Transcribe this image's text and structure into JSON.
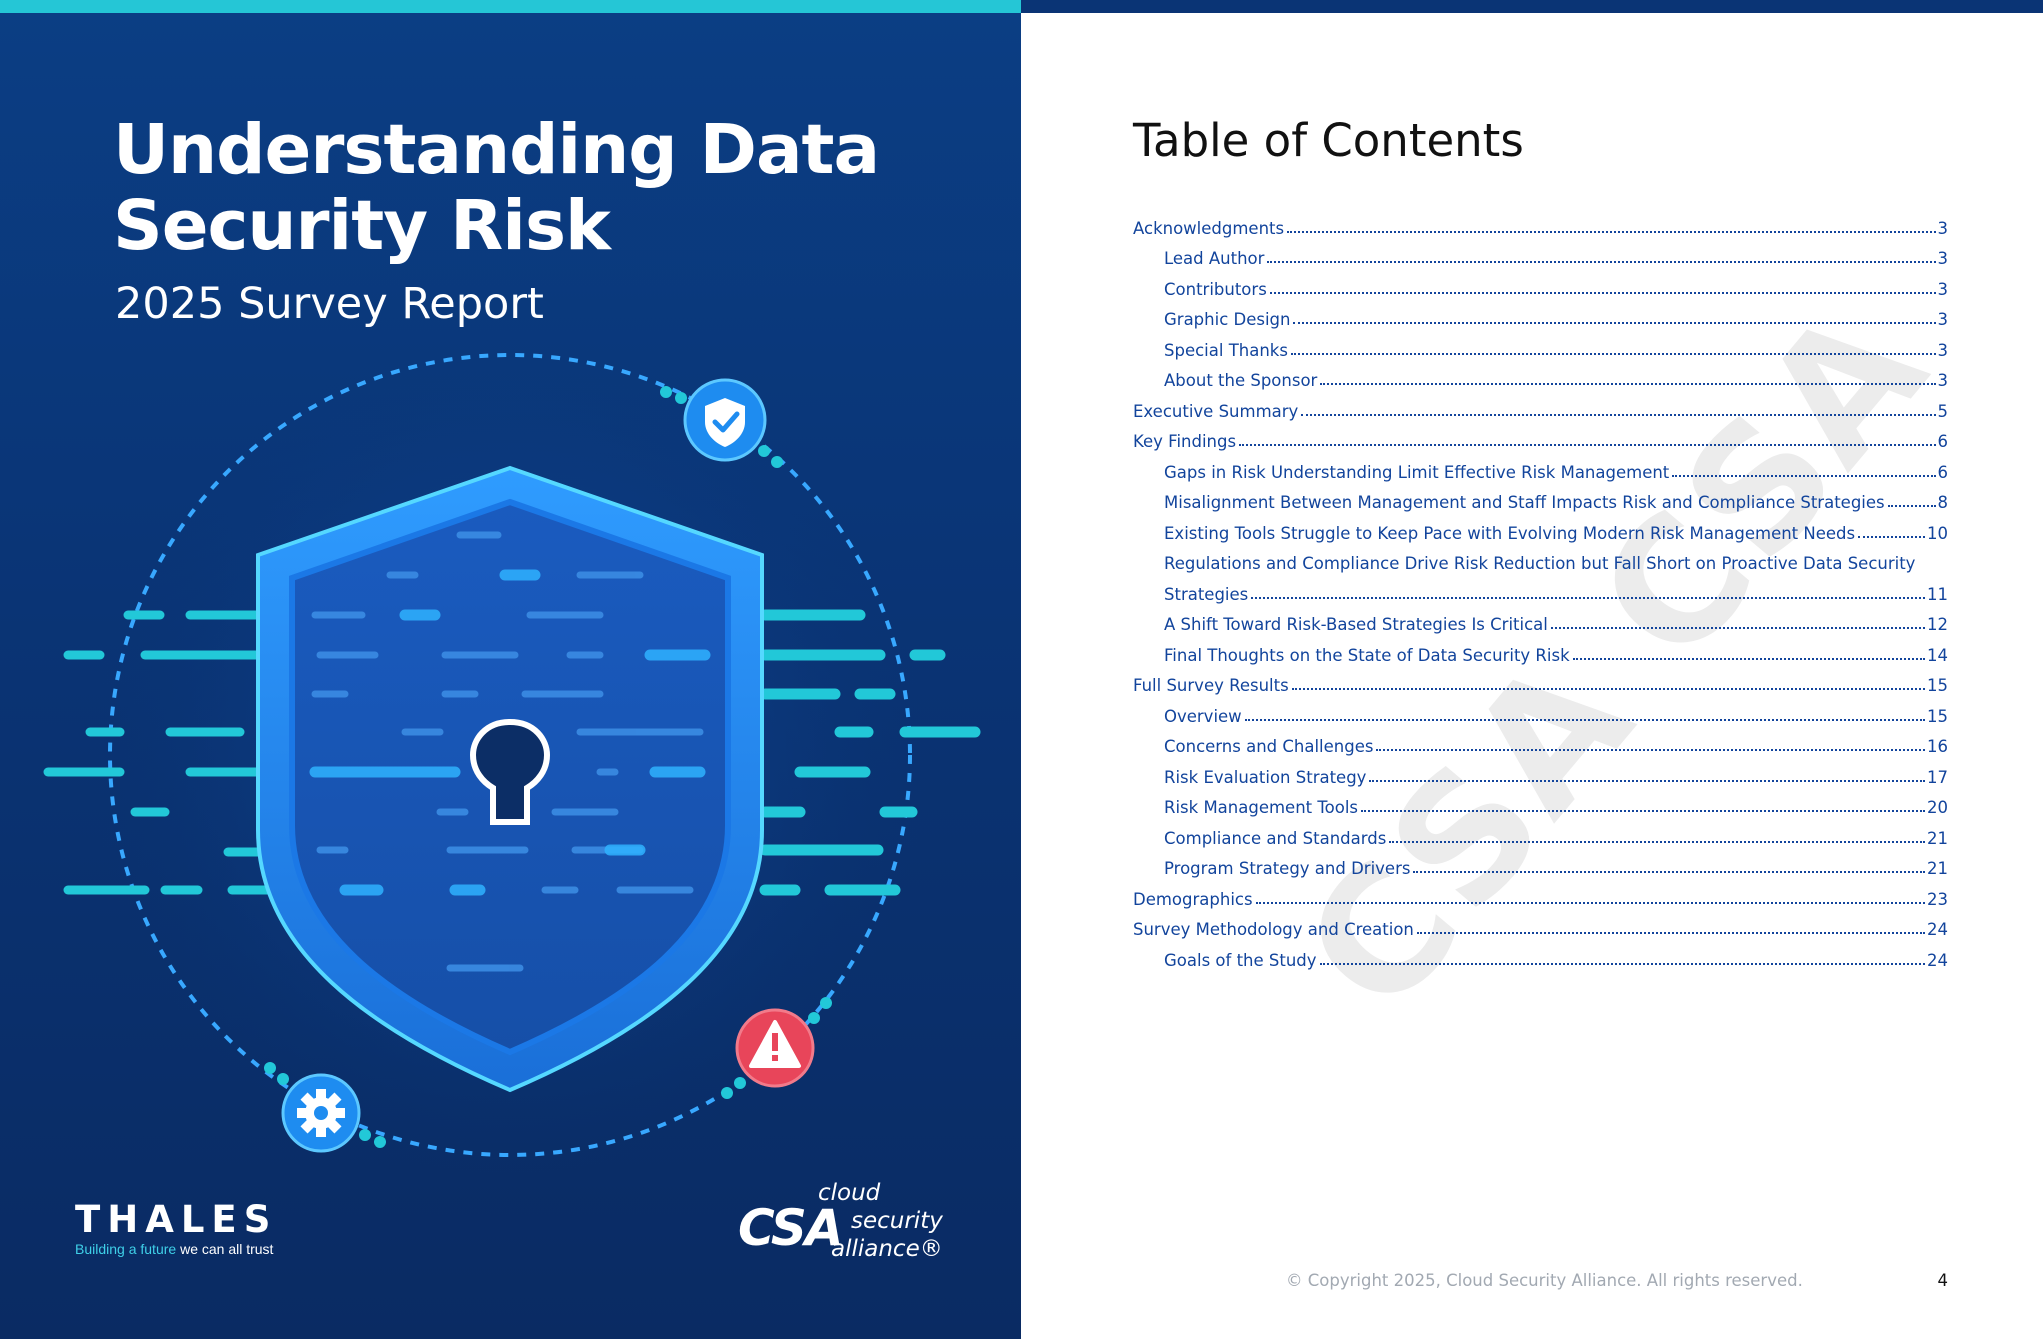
{
  "cover": {
    "title_line1": "Understanding Data",
    "title_line2": "Security Risk",
    "subtitle": "2025 Survey Report",
    "icons": [
      "shield-check-icon",
      "warning-icon",
      "gear-icon",
      "keyhole-icon"
    ],
    "colors": {
      "background": "#0a3475",
      "accent": "#25c6d6",
      "warning": "#e8455a",
      "icon_blue": "#1e8cf0"
    },
    "thales": {
      "wordmark": "THALES",
      "tagline_accent": "Building a future",
      "tagline_rest": " we can all trust"
    },
    "csa": {
      "mark": "CSA",
      "line1": "cloud",
      "line2": "security",
      "line3": "alliance®"
    }
  },
  "toc": {
    "title": "Table of Contents",
    "watermark": "CSA CSA",
    "link_color": "#12449c",
    "entries": [
      {
        "label": "Acknowledgments",
        "page": "3",
        "level": 0
      },
      {
        "label": "Lead Author",
        "page": "3",
        "level": 1
      },
      {
        "label": "Contributors",
        "page": "3",
        "level": 1
      },
      {
        "label": "Graphic Design",
        "page": "3",
        "level": 1
      },
      {
        "label": "Special Thanks",
        "page": "3",
        "level": 1
      },
      {
        "label": "About the Sponsor",
        "page": "3",
        "level": 1
      },
      {
        "label": "Executive Summary",
        "page": "5",
        "level": 0
      },
      {
        "label": "Key Findings",
        "page": "6",
        "level": 0
      },
      {
        "label": "Gaps in Risk Understanding Limit Effective Risk Management",
        "page": "6",
        "level": 1
      },
      {
        "label": "Misalignment Between Management and Staff Impacts Risk and Compliance Strategies",
        "page": "8",
        "level": 1
      },
      {
        "label": "Existing Tools Struggle to Keep Pace with Evolving Modern Risk Management Needs",
        "page": "10",
        "level": 1
      },
      {
        "label": "Regulations and Compliance Drive Risk Reduction but Fall Short on Proactive Data Security",
        "page": "",
        "level": 1
      },
      {
        "label": "Strategies",
        "page": "11",
        "level": 1
      },
      {
        "label": "A Shift Toward Risk-Based Strategies Is Critical",
        "page": "12",
        "level": 1
      },
      {
        "label": "Final Thoughts on the State of Data Security Risk",
        "page": "14",
        "level": 1
      },
      {
        "label": "Full Survey Results",
        "page": "15",
        "level": 0
      },
      {
        "label": "Overview",
        "page": "15",
        "level": 1
      },
      {
        "label": "Concerns and Challenges",
        "page": "16",
        "level": 1
      },
      {
        "label": "Risk Evaluation Strategy",
        "page": "17",
        "level": 1
      },
      {
        "label": "Risk Management Tools",
        "page": "20",
        "level": 1
      },
      {
        "label": "Compliance and Standards",
        "page": "21",
        "level": 1
      },
      {
        "label": "Program Strategy and Drivers",
        "page": "21",
        "level": 1
      },
      {
        "label": "Demographics",
        "page": "23",
        "level": 0
      },
      {
        "label": "Survey Methodology and Creation",
        "page": "24",
        "level": 0
      },
      {
        "label": "Goals of the Study",
        "page": "24",
        "level": 1
      }
    ]
  },
  "footer": {
    "copyright": "© Copyright 2025, Cloud Security Alliance. All rights reserved.",
    "page_number": "4"
  }
}
